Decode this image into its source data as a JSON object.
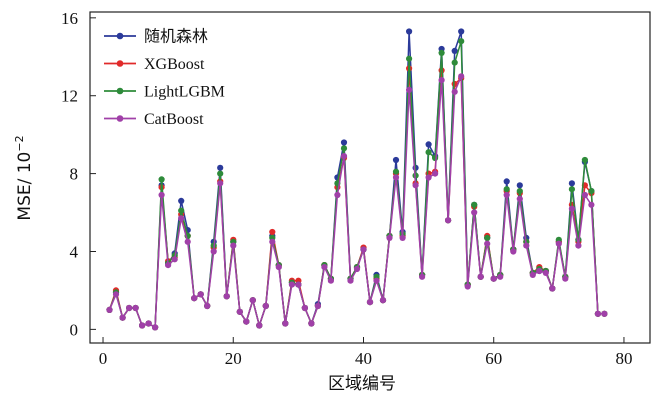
{
  "chart_data": {
    "type": "line",
    "xlabel": "区域编号",
    "ylabel": "MSE/ 10",
    "ylabel_exponent": "−2",
    "xlim": [
      -2,
      84
    ],
    "ylim": [
      -0.7,
      16.3
    ],
    "xticks": [
      0,
      20,
      40,
      60,
      80
    ],
    "yticks": [
      0,
      4,
      8,
      12,
      16
    ],
    "legend_position": "top-left",
    "x": [
      1,
      2,
      3,
      4,
      5,
      6,
      7,
      8,
      9,
      10,
      11,
      12,
      13,
      14,
      15,
      16,
      17,
      18,
      19,
      20,
      21,
      22,
      23,
      24,
      25,
      26,
      27,
      28,
      29,
      30,
      31,
      32,
      33,
      34,
      35,
      36,
      37,
      38,
      39,
      40,
      41,
      42,
      43,
      44,
      45,
      46,
      47,
      48,
      49,
      50,
      51,
      52,
      53,
      54,
      55,
      56,
      57,
      58,
      59,
      60,
      61,
      62,
      63,
      64,
      65,
      66,
      67,
      68,
      69,
      70,
      71,
      72,
      73,
      74,
      75,
      76,
      77
    ],
    "series": [
      {
        "name": "随机森林",
        "color": "#2b3a9a",
        "values": [
          1.0,
          1.9,
          0.6,
          1.1,
          1.1,
          0.2,
          0.3,
          0.1,
          7.4,
          3.4,
          3.9,
          6.6,
          5.1,
          1.6,
          1.8,
          1.2,
          4.5,
          8.3,
          1.7,
          4.5,
          0.9,
          0.4,
          1.5,
          0.2,
          1.2,
          4.8,
          3.3,
          0.3,
          2.4,
          2.3,
          1.1,
          0.3,
          1.3,
          3.3,
          2.6,
          7.8,
          9.6,
          2.6,
          3.2,
          4.1,
          1.4,
          2.8,
          1.5,
          4.8,
          8.7,
          5.0,
          15.3,
          8.3,
          2.8,
          9.5,
          8.9,
          14.4,
          5.6,
          14.3,
          15.3,
          2.3,
          6.4,
          2.7,
          4.7,
          2.6,
          2.8,
          7.6,
          4.1,
          7.4,
          4.7,
          2.9,
          3.0,
          3.0,
          2.1,
          4.5,
          2.7,
          7.5,
          4.6,
          8.6,
          7.1,
          0.8,
          0.8
        ]
      },
      {
        "name": "XGBoost",
        "color": "#e02a2a",
        "values": [
          1.0,
          2.0,
          0.6,
          1.1,
          1.1,
          0.2,
          0.3,
          0.1,
          7.3,
          3.5,
          3.7,
          5.9,
          4.8,
          1.6,
          1.8,
          1.2,
          4.2,
          7.6,
          1.7,
          4.6,
          0.9,
          0.4,
          1.5,
          0.2,
          1.2,
          5.0,
          3.3,
          0.3,
          2.5,
          2.5,
          1.1,
          0.3,
          1.2,
          3.3,
          2.6,
          7.3,
          8.8,
          2.6,
          3.2,
          4.2,
          1.4,
          2.6,
          1.5,
          4.8,
          8.0,
          4.8,
          13.4,
          7.5,
          2.8,
          8.0,
          8.1,
          13.3,
          5.6,
          12.6,
          12.9,
          2.3,
          6.3,
          2.7,
          4.8,
          2.6,
          2.8,
          7.1,
          4.1,
          7.0,
          4.5,
          2.9,
          3.2,
          3.0,
          2.1,
          4.5,
          2.7,
          6.4,
          4.5,
          7.4,
          7.0,
          0.8,
          0.8
        ]
      },
      {
        "name": "LightLGBM",
        "color": "#2e8b3a",
        "values": [
          1.0,
          1.9,
          0.6,
          1.1,
          1.1,
          0.2,
          0.3,
          0.1,
          7.7,
          3.4,
          3.8,
          6.1,
          4.8,
          1.6,
          1.8,
          1.2,
          4.3,
          8.0,
          1.7,
          4.5,
          0.9,
          0.4,
          1.5,
          0.2,
          1.2,
          4.7,
          3.3,
          0.3,
          2.4,
          2.3,
          1.1,
          0.3,
          1.2,
          3.3,
          2.6,
          7.5,
          9.3,
          2.6,
          3.2,
          4.1,
          1.4,
          2.7,
          1.5,
          4.8,
          8.1,
          4.9,
          13.9,
          7.9,
          2.8,
          9.1,
          8.8,
          14.2,
          5.6,
          13.7,
          14.8,
          2.3,
          6.4,
          2.7,
          4.7,
          2.6,
          2.8,
          7.2,
          4.1,
          7.1,
          4.5,
          2.9,
          3.1,
          3.0,
          2.1,
          4.6,
          2.7,
          7.2,
          4.6,
          8.7,
          7.1,
          0.8,
          0.8
        ]
      },
      {
        "name": "CatBoost",
        "color": "#a040a8",
        "values": [
          1.0,
          1.8,
          0.6,
          1.1,
          1.1,
          0.2,
          0.3,
          0.1,
          6.9,
          3.3,
          3.6,
          5.7,
          4.5,
          1.6,
          1.8,
          1.2,
          4.0,
          7.5,
          1.7,
          4.3,
          0.9,
          0.4,
          1.5,
          0.2,
          1.2,
          4.5,
          3.2,
          0.3,
          2.3,
          2.3,
          1.1,
          0.3,
          1.2,
          3.2,
          2.5,
          6.9,
          8.9,
          2.5,
          3.1,
          4.1,
          1.4,
          2.5,
          1.5,
          4.7,
          7.8,
          4.7,
          12.3,
          7.4,
          2.7,
          7.8,
          8.0,
          12.8,
          5.6,
          12.2,
          13.0,
          2.2,
          6.0,
          2.7,
          4.4,
          2.6,
          2.7,
          6.9,
          4.0,
          6.7,
          4.3,
          2.8,
          3.0,
          2.9,
          2.1,
          4.4,
          2.6,
          6.2,
          4.3,
          6.9,
          6.4,
          0.8,
          0.8
        ]
      }
    ]
  }
}
